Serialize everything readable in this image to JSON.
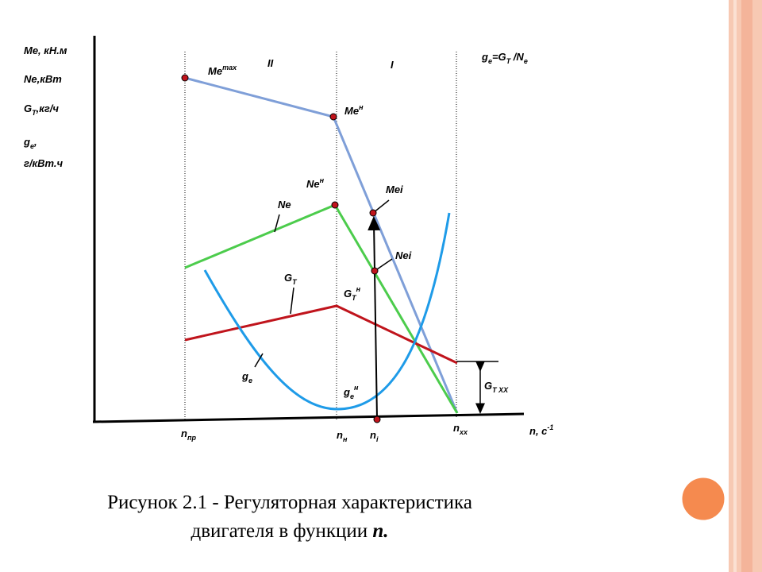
{
  "axis_labels": [
    {
      "base": "Me, кН.м"
    },
    {
      "base": "Ne,кВт"
    },
    {
      "base": "G",
      "sub": "T",
      "rest": ",кг/ч"
    },
    {
      "base": "g",
      "sub": "e",
      "rest": ","
    },
    {
      "base": "г/кВт.ч"
    }
  ],
  "zones": [
    "II",
    "I"
  ],
  "formula": {
    "a": "g",
    "a_sub": "e",
    "b": "=G",
    "b_sub": "T",
    "c": " /N",
    "c_sub": "e"
  },
  "curve_labels": {
    "me_max": {
      "base": "Me",
      "sup": "max"
    },
    "me_n": {
      "base": "Me",
      "sup": "н"
    },
    "ne_n": {
      "base": "Ne",
      "sup": "н"
    },
    "ne": {
      "base": "Ne"
    },
    "mei": {
      "base": "Mei"
    },
    "nei": {
      "base": "Nei"
    },
    "gt": {
      "base": "G",
      "sub": "T"
    },
    "gt_n": {
      "base": "G",
      "sub": "T",
      "sup": "н"
    },
    "ge": {
      "base": "g",
      "sub": "e"
    },
    "ge_n": {
      "base": "g",
      "sub": "e",
      "sup": "н"
    },
    "gt_xx": {
      "base": "G",
      "sub": "T XX"
    }
  },
  "x_labels": {
    "n_pr": {
      "base": "n",
      "sub": "пр"
    },
    "n_n": {
      "base": "n",
      "sub": "н"
    },
    "n_i": {
      "base": "n",
      "sub": "i"
    },
    "n_xx": {
      "base": "n",
      "sub": "xx"
    },
    "n_axis": {
      "base": "n, c",
      "sup": "-1"
    }
  },
  "caption": {
    "line1": "Рисунок 2.1 - Регуляторная характеристика",
    "line2": "двигателя в функции ",
    "line2_em": "n."
  }
}
